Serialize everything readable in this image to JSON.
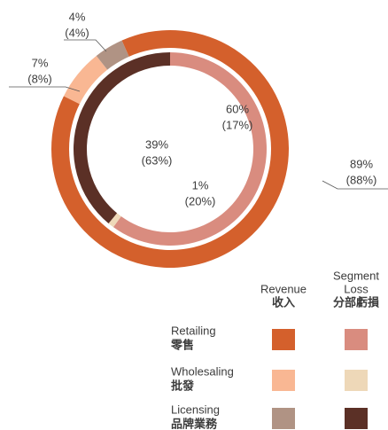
{
  "chart_data": {
    "type": "donut",
    "categories": [
      [
        "Retailing",
        "零售"
      ],
      [
        "Wholesaling",
        "批發"
      ],
      [
        "Licensing",
        "品牌業務"
      ]
    ],
    "series": [
      {
        "name": [
          "Revenue",
          "收入"
        ],
        "colors": [
          "#d4602c",
          "#f9b793",
          "#b09384"
        ],
        "values": [
          89,
          7,
          4
        ],
        "value_labels": [
          "89%",
          "7%",
          "4%"
        ],
        "secondary_labels": [
          "(88%)",
          "(8%)",
          "(4%)"
        ]
      },
      {
        "name": [
          "Segment",
          "Loss",
          "分部虧損"
        ],
        "colors": [
          "#d98c7f",
          "#eed8b8",
          "#5b3026"
        ],
        "values": [
          60,
          1,
          39
        ],
        "value_labels": [
          "60%",
          "1%",
          "39%"
        ],
        "secondary_labels": [
          "(17%)",
          "(20%)",
          "(63%)"
        ]
      }
    ]
  }
}
